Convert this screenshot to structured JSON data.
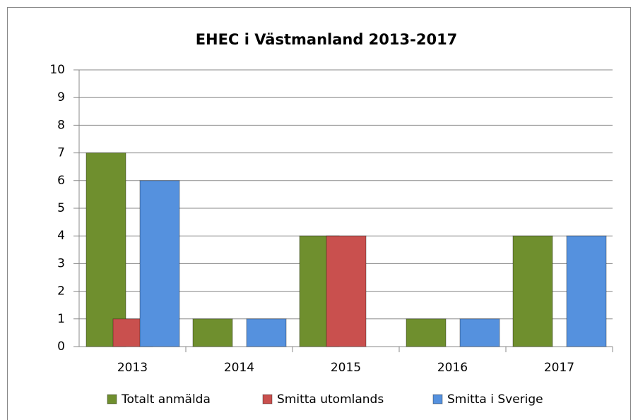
{
  "chart_data": {
    "type": "bar",
    "title": "EHEC i Västmanland 2013-2017",
    "categories": [
      "2013",
      "2014",
      "2015",
      "2016",
      "2017"
    ],
    "series": [
      {
        "name": "Totalt anmälda",
        "color": "#6f8f2e",
        "values": [
          7,
          1,
          4,
          1,
          4
        ]
      },
      {
        "name": "Smitta utomlands",
        "color": "#c9504e",
        "values": [
          1,
          0,
          4,
          0,
          0
        ]
      },
      {
        "name": "Smitta i Sverige",
        "color": "#5591de",
        "values": [
          6,
          1,
          0,
          1,
          4
        ]
      }
    ],
    "ylim": [
      0,
      10
    ],
    "yticks": [
      0,
      1,
      2,
      3,
      4,
      5,
      6,
      7,
      8,
      9,
      10
    ],
    "grid": true,
    "legend": "bottom"
  }
}
